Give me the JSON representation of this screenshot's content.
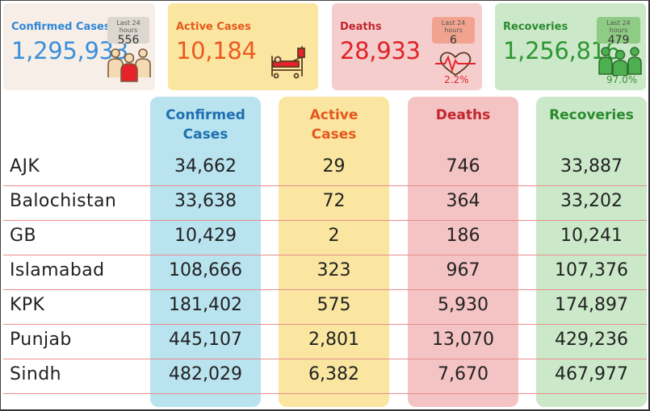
{
  "cards": {
    "confirmed": {
      "title": "Confirmed Cases",
      "value": "1,295,933",
      "badge_label": "Last 24 hours",
      "badge_value": "556",
      "icon": "people-group-icon",
      "color": "#3a8fdc"
    },
    "active": {
      "title": "Active Cases",
      "value": "10,184",
      "icon": "hospital-bed-icon",
      "color": "#ec5a20"
    },
    "deaths": {
      "title": "Deaths",
      "value": "28,933",
      "badge_label": "Last 24 hours",
      "badge_value": "6",
      "percent": "2.2%",
      "icon": "heartbeat-icon",
      "color": "#e02228"
    },
    "recoveries": {
      "title": "Recoveries",
      "value": "1,256,816",
      "badge_label": "Last 24 hours",
      "badge_value": "479",
      "percent": "97.0%",
      "icon": "recovered-people-icon",
      "color": "#2f9632"
    }
  },
  "table": {
    "headers": {
      "confirmed": [
        "Confirmed",
        "Cases"
      ],
      "active": [
        "Active",
        "Cases"
      ],
      "deaths": [
        "Deaths"
      ],
      "recoveries": [
        "Recoveries"
      ]
    },
    "rows": [
      {
        "region": "AJK",
        "confirmed": "34,662",
        "active": "29",
        "deaths": "746",
        "recoveries": "33,887"
      },
      {
        "region": "Balochistan",
        "confirmed": "33,638",
        "active": "72",
        "deaths": "364",
        "recoveries": "33,202"
      },
      {
        "region": "GB",
        "confirmed": "10,429",
        "active": "2",
        "deaths": "186",
        "recoveries": "10,241"
      },
      {
        "region": "Islamabad",
        "confirmed": "108,666",
        "active": "323",
        "deaths": "967",
        "recoveries": "107,376"
      },
      {
        "region": "KPK",
        "confirmed": "181,402",
        "active": "575",
        "deaths": "5,930",
        "recoveries": "174,897"
      },
      {
        "region": "Punjab",
        "confirmed": "445,107",
        "active": "2,801",
        "deaths": "13,070",
        "recoveries": "429,236"
      },
      {
        "region": "Sindh",
        "confirmed": "482,029",
        "active": "6,382",
        "deaths": "7,670",
        "recoveries": "467,977"
      }
    ]
  }
}
